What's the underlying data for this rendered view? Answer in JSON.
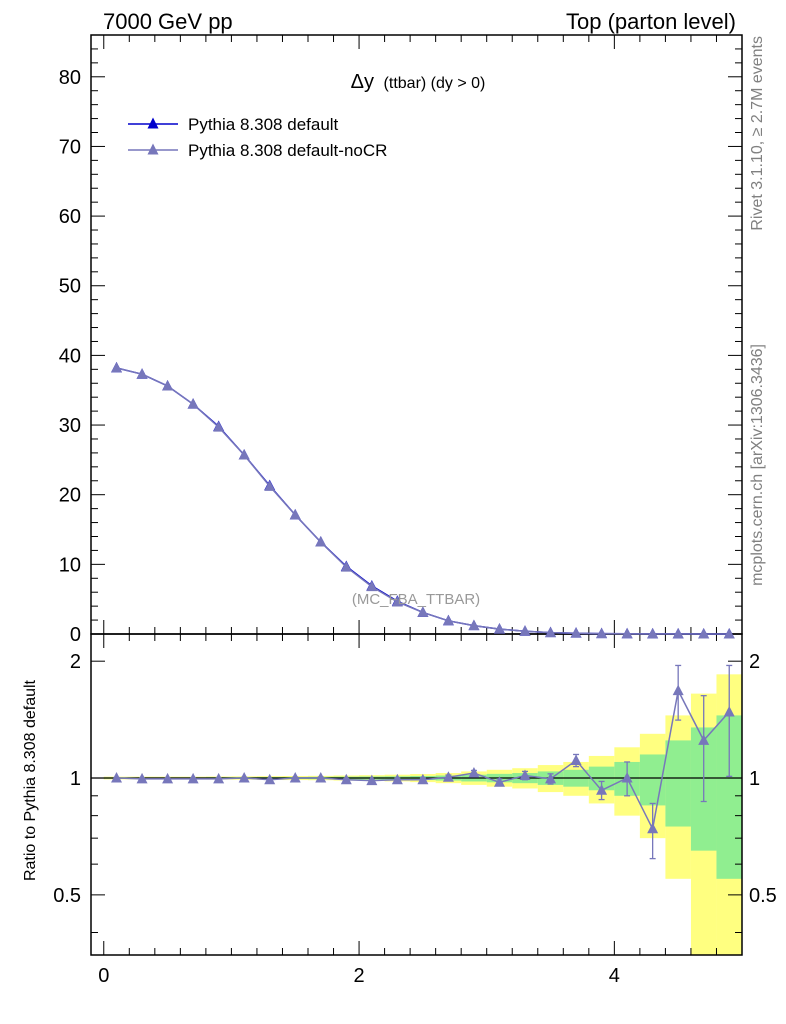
{
  "header": {
    "left": "7000 GeV pp",
    "right": "Top (parton level)"
  },
  "side_labels": {
    "rivet": "Rivet 3.1.10, ≥ 2.7M events",
    "mcplots": "mcplots.cern.ch [arXiv:1306.3436]"
  },
  "chart_data": [
    {
      "type": "line",
      "title": "Δy (ttbar) (dy > 0)",
      "title_main": "Δy",
      "title_sub": "(ttbar) (dy > 0)",
      "watermark": "(MC_FBA_TTBAR)",
      "xlim": [
        -0.1,
        5.0
      ],
      "ylim": [
        0,
        86
      ],
      "yticks": [
        0,
        10,
        20,
        30,
        40,
        50,
        60,
        70,
        80
      ],
      "legend_position": "top-left",
      "x": [
        0.1,
        0.3,
        0.5,
        0.7,
        0.9,
        1.1,
        1.3,
        1.5,
        1.7,
        1.9,
        2.1,
        2.3,
        2.5,
        2.7,
        2.9,
        3.1,
        3.3,
        3.5,
        3.7,
        3.9,
        4.1,
        4.3,
        4.5,
        4.7,
        4.9
      ],
      "series": [
        {
          "name": "Pythia 8.308 default",
          "color": "#0000cc",
          "marker": "triangle-up",
          "values": [
            38.2,
            37.3,
            35.6,
            33.0,
            29.8,
            25.7,
            21.3,
            17.1,
            13.2,
            9.7,
            6.9,
            4.7,
            3.1,
            1.9,
            1.2,
            0.7,
            0.4,
            0.2,
            0.12,
            0.06,
            0.03,
            0.02,
            0.01,
            0.005,
            0.003
          ]
        },
        {
          "name": "Pythia 8.308 default-noCR",
          "color": "#7777bb",
          "marker": "triangle-up",
          "values": [
            38.2,
            37.3,
            35.6,
            33.0,
            29.7,
            25.7,
            21.2,
            17.1,
            13.2,
            9.6,
            6.8,
            4.6,
            3.1,
            1.9,
            1.2,
            0.7,
            0.4,
            0.2,
            0.12,
            0.06,
            0.03,
            0.02,
            0.01,
            0.005,
            0.003
          ]
        }
      ]
    },
    {
      "type": "line",
      "ylabel": "Ratio to Pythia 8.308 default",
      "xlim": [
        -0.1,
        5.0
      ],
      "ylim": [
        0.35,
        2.35
      ],
      "xticks": [
        "0",
        "2",
        "4"
      ],
      "yticks": [
        "0.5",
        "1",
        "2"
      ],
      "x": [
        0.1,
        0.3,
        0.5,
        0.7,
        0.9,
        1.1,
        1.3,
        1.5,
        1.7,
        1.9,
        2.1,
        2.3,
        2.5,
        2.7,
        2.9,
        3.1,
        3.3,
        3.5,
        3.7,
        3.9,
        4.1,
        4.3,
        4.5,
        4.7,
        4.9
      ],
      "reference_band": {
        "stat_color": "#90ee90",
        "syst_color": "#ffff80",
        "green_half_width": [
          0.004,
          0.004,
          0.004,
          0.004,
          0.005,
          0.005,
          0.006,
          0.006,
          0.007,
          0.008,
          0.009,
          0.01,
          0.012,
          0.015,
          0.02,
          0.025,
          0.03,
          0.04,
          0.05,
          0.07,
          0.1,
          0.15,
          0.25,
          0.35,
          0.45
        ],
        "yellow_half_width": [
          0.008,
          0.008,
          0.008,
          0.008,
          0.009,
          0.01,
          0.011,
          0.012,
          0.013,
          0.015,
          0.017,
          0.02,
          0.024,
          0.03,
          0.04,
          0.05,
          0.06,
          0.08,
          0.1,
          0.14,
          0.2,
          0.3,
          0.45,
          0.65,
          0.85
        ]
      },
      "series": [
        {
          "name": "Pythia 8.308 default-noCR",
          "color": "#7777bb",
          "marker": "triangle-up",
          "values": [
            1.0,
            0.995,
            0.995,
            0.995,
            0.995,
            1.0,
            0.99,
            1.0,
            1.0,
            0.99,
            0.985,
            0.99,
            0.99,
            1.005,
            1.03,
            0.975,
            1.015,
            0.995,
            1.11,
            0.93,
            1.0,
            0.74,
            1.68,
            1.25,
            1.48
          ],
          "errors": [
            0.003,
            0.003,
            0.003,
            0.003,
            0.004,
            0.004,
            0.005,
            0.005,
            0.006,
            0.007,
            0.008,
            0.009,
            0.011,
            0.013,
            0.016,
            0.02,
            0.025,
            0.03,
            0.04,
            0.05,
            0.1,
            0.12,
            0.27,
            0.38,
            0.47
          ]
        }
      ]
    }
  ]
}
